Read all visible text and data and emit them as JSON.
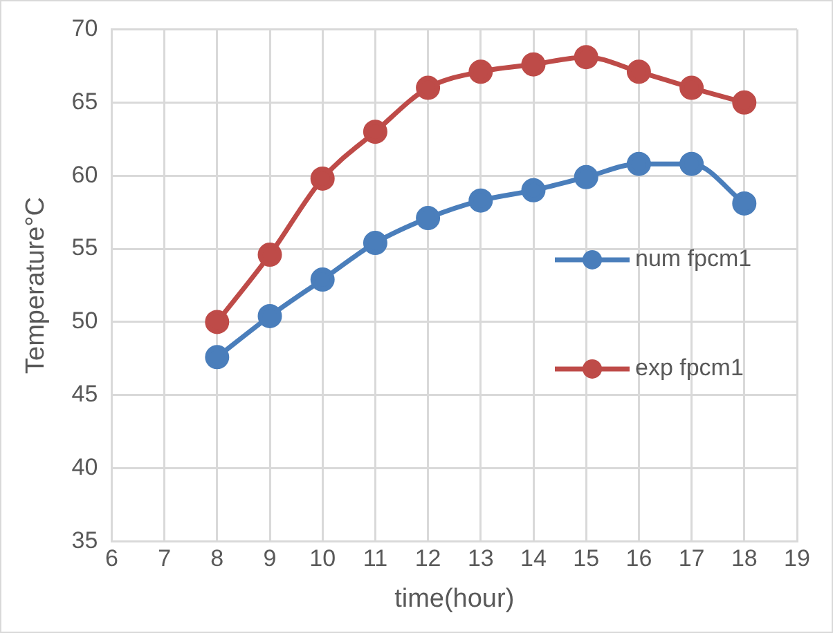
{
  "chart_data": {
    "type": "line",
    "xlabel": "time(hour)",
    "ylabel": "Temperature°C",
    "x": [
      8,
      9,
      10,
      11,
      12,
      13,
      14,
      15,
      16,
      17,
      18
    ],
    "series": [
      {
        "name": "num fpcm1",
        "color": "#4a7ebb",
        "values": [
          47.6,
          50.4,
          52.9,
          55.4,
          57.1,
          58.3,
          59.0,
          59.9,
          60.8,
          60.8,
          58.1
        ]
      },
      {
        "name": "exp fpcm1",
        "color": "#be4b48",
        "values": [
          50.0,
          54.6,
          59.8,
          63.0,
          66.0,
          67.1,
          67.6,
          68.1,
          67.1,
          66.0,
          65.0
        ]
      }
    ],
    "xlim": [
      6,
      19
    ],
    "xticks": [
      6,
      7,
      8,
      9,
      10,
      11,
      12,
      13,
      14,
      15,
      16,
      17,
      18,
      19
    ],
    "ylim": [
      35,
      70
    ],
    "yticks": [
      35,
      40,
      45,
      50,
      55,
      60,
      65,
      70
    ],
    "grid": true,
    "legend": "right",
    "marker": "circle",
    "line_style": "solid"
  }
}
